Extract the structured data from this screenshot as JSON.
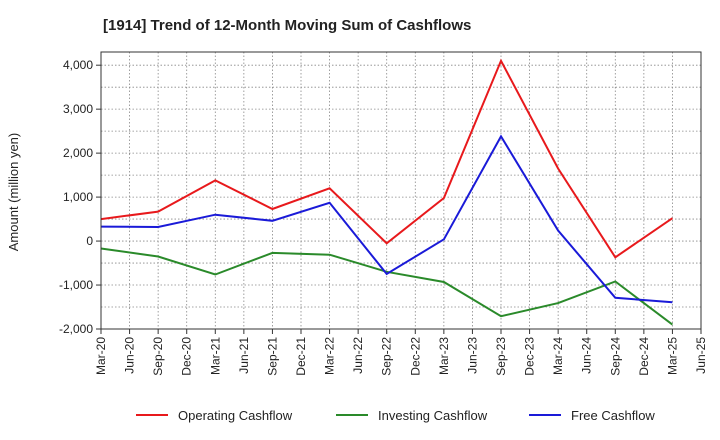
{
  "chart_data": {
    "type": "line",
    "title": "[1914]  Trend of 12-Month Moving Sum of Cashflows",
    "xlabel": "",
    "ylabel": "Amount (million yen)",
    "ylim": [
      -2000,
      4300
    ],
    "yticks": [
      -2000,
      -1000,
      0,
      1000,
      2000,
      3000,
      4000
    ],
    "ytick_labels": [
      "-2,000",
      "-1,000",
      "0",
      "1,000",
      "2,000",
      "3,000",
      "4,000"
    ],
    "xticks": [
      "Mar-20",
      "Jun-20",
      "Sep-20",
      "Dec-20",
      "Mar-21",
      "Jun-21",
      "Sep-21",
      "Dec-21",
      "Mar-22",
      "Jun-22",
      "Sep-22",
      "Dec-22",
      "Mar-23",
      "Jun-23",
      "Sep-23",
      "Dec-23",
      "Mar-24",
      "Jun-24",
      "Sep-24",
      "Dec-24",
      "Mar-25",
      "Jun-25"
    ],
    "grid": true,
    "legend_position": "bottom",
    "series": [
      {
        "name": "Operating Cashflow",
        "color": "#e8191c",
        "x": [
          "Mar-20",
          "Sep-20",
          "Mar-21",
          "Sep-21",
          "Mar-22",
          "Sep-22",
          "Mar-23",
          "Sep-23",
          "Mar-24",
          "Sep-24",
          "Mar-25"
        ],
        "values": [
          500,
          670,
          1380,
          730,
          1200,
          -50,
          980,
          4100,
          1650,
          -370,
          520
        ]
      },
      {
        "name": "Investing Cashflow",
        "color": "#2a8a2a",
        "x": [
          "Mar-20",
          "Sep-20",
          "Mar-21",
          "Sep-21",
          "Mar-22",
          "Sep-22",
          "Mar-23",
          "Sep-23",
          "Mar-24",
          "Sep-24",
          "Mar-25"
        ],
        "values": [
          -170,
          -350,
          -760,
          -270,
          -310,
          -700,
          -930,
          -1710,
          -1410,
          -920,
          -1900
        ]
      },
      {
        "name": "Free Cashflow",
        "color": "#1a1ad8",
        "x": [
          "Mar-20",
          "Sep-20",
          "Mar-21",
          "Sep-21",
          "Mar-22",
          "Sep-22",
          "Mar-23",
          "Sep-23",
          "Mar-24",
          "Sep-24",
          "Mar-25"
        ],
        "values": [
          330,
          320,
          600,
          460,
          870,
          -750,
          40,
          2380,
          240,
          -1290,
          -1390
        ]
      }
    ]
  }
}
